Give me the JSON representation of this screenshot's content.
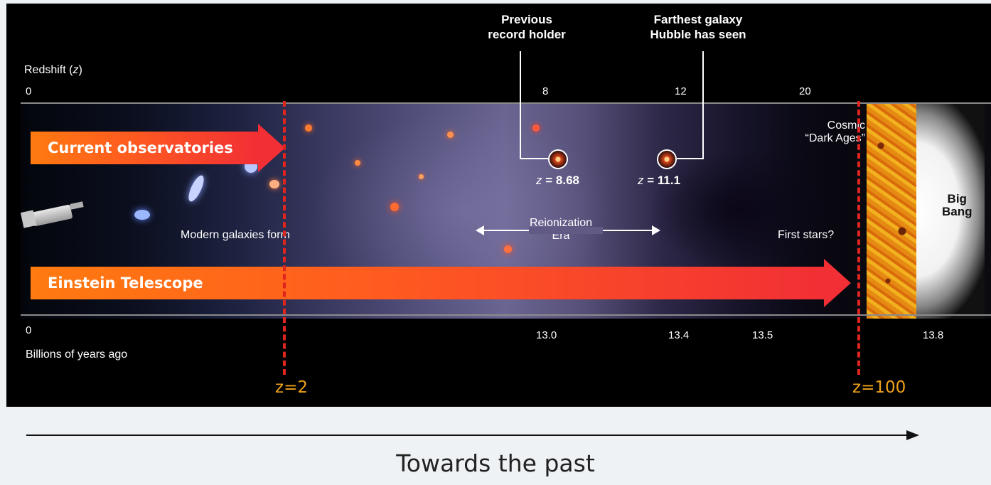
{
  "redshift_axis": {
    "label_prefix": "Redshift (",
    "label_var": "z",
    "label_suffix": ")",
    "ticks": [
      "0",
      "8",
      "12",
      "20"
    ]
  },
  "time_axis": {
    "label": "Billions of years ago",
    "ticks": [
      "0",
      "13.0",
      "13.4",
      "13.5",
      "13.8"
    ]
  },
  "callouts": {
    "previous": {
      "line1": "Previous",
      "line2": "record holder",
      "value": "= 8.68",
      "var": "z"
    },
    "farthest": {
      "line1": "Farthest galaxy",
      "line2": "Hubble has seen",
      "value": "= 11.1",
      "var": "z"
    }
  },
  "annotations": {
    "modern_galaxies": "Modern galaxies form",
    "reionization_line1": "Reionization",
    "reionization_line2": "Era",
    "dark_ages_line1": "Cosmic",
    "dark_ages_line2": "“Dark Ages”",
    "first_stars": "First stars?",
    "big_bang_line1": "Big",
    "big_bang_line2": "Bang"
  },
  "arrows": {
    "current": "Current observatories",
    "einstein": "Einstein Telescope"
  },
  "markers": {
    "z2": "z=2",
    "z100": "z=100"
  },
  "footer": {
    "direction_label": "Towards the past"
  },
  "colors": {
    "arrow_start": "#ff7a10",
    "arrow_end": "#f12f35",
    "dash_line": "#e0241e",
    "z_marker_text": "#f0a21a"
  }
}
